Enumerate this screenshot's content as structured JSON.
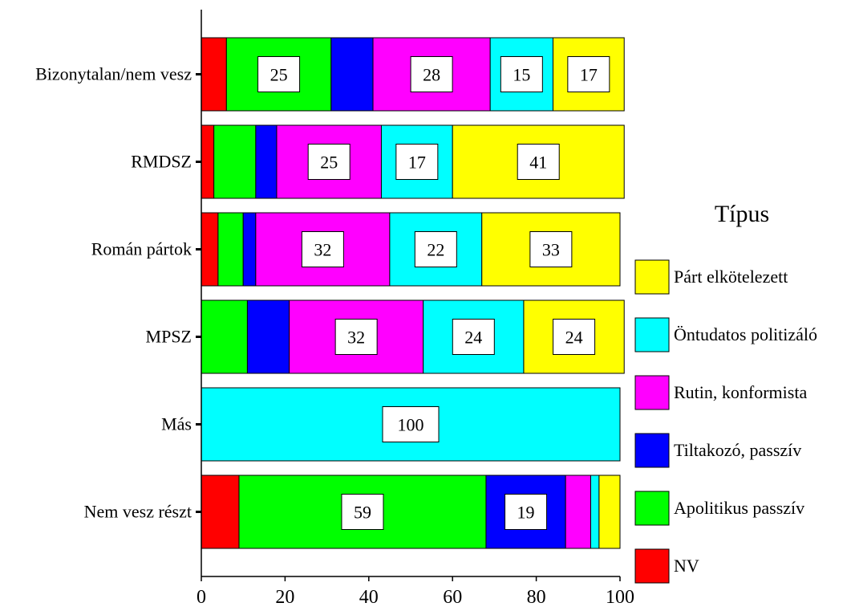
{
  "chart_data": {
    "type": "bar",
    "orientation": "horizontal",
    "stacked": true,
    "categories": [
      "Bizonytalan/nem vesz",
      "RMDSZ",
      "Román pártok",
      "MPSZ",
      "Más",
      "Nem vesz részt"
    ],
    "series": [
      {
        "name": "NV",
        "color": "#FF0000",
        "values": [
          6,
          3,
          4,
          0,
          0,
          9
        ]
      },
      {
        "name": "Apolitikus passzív",
        "color": "#00FF00",
        "values": [
          25,
          10,
          6,
          11,
          0,
          59
        ]
      },
      {
        "name": "Tiltakozó, passzív",
        "color": "#0000FF",
        "values": [
          10,
          5,
          3,
          10,
          0,
          19
        ]
      },
      {
        "name": "Rutin, konformista",
        "color": "#FF00FF",
        "values": [
          28,
          25,
          32,
          32,
          0,
          6
        ]
      },
      {
        "name": "Öntudatos politizáló",
        "color": "#00FFFF",
        "values": [
          15,
          17,
          22,
          24,
          100,
          2
        ]
      },
      {
        "name": "Párt elkötelezett",
        "color": "#FFFF00",
        "values": [
          17,
          41,
          33,
          24,
          0,
          5
        ]
      }
    ],
    "labeled_segments": [
      {
        "category": "Bizonytalan/nem vesz",
        "series": "Apolitikus passzív",
        "label": "25"
      },
      {
        "category": "Bizonytalan/nem vesz",
        "series": "Rutin, konformista",
        "label": "28"
      },
      {
        "category": "Bizonytalan/nem vesz",
        "series": "Öntudatos politizáló",
        "label": "15"
      },
      {
        "category": "Bizonytalan/nem vesz",
        "series": "Párt elkötelezett",
        "label": "17"
      },
      {
        "category": "RMDSZ",
        "series": "Rutin, konformista",
        "label": "25"
      },
      {
        "category": "RMDSZ",
        "series": "Öntudatos politizáló",
        "label": "17"
      },
      {
        "category": "RMDSZ",
        "series": "Párt elkötelezett",
        "label": "41"
      },
      {
        "category": "Román pártok",
        "series": "Rutin, konformista",
        "label": "32"
      },
      {
        "category": "Román pártok",
        "series": "Öntudatos politizáló",
        "label": "22"
      },
      {
        "category": "Román pártok",
        "series": "Párt elkötelezett",
        "label": "33"
      },
      {
        "category": "MPSZ",
        "series": "Rutin, konformista",
        "label": "32"
      },
      {
        "category": "MPSZ",
        "series": "Öntudatos politizáló",
        "label": "24"
      },
      {
        "category": "MPSZ",
        "series": "Párt elkötelezett",
        "label": "24"
      },
      {
        "category": "Más",
        "series": "Öntudatos politizáló",
        "label": "100"
      },
      {
        "category": "Nem vesz részt",
        "series": "Apolitikus passzív",
        "label": "59"
      },
      {
        "category": "Nem vesz részt",
        "series": "Tiltakozó, passzív",
        "label": "19"
      }
    ],
    "xlim": [
      0,
      100
    ],
    "x_ticks": [
      0,
      20,
      40,
      60,
      80,
      100
    ],
    "title": "",
    "xlabel": "",
    "ylabel": "",
    "legend": {
      "title": "Típus",
      "placement": "right",
      "order": [
        "Párt elkötelezett",
        "Öntudatos politizáló",
        "Rutin, konformista",
        "Tiltakozó, passzív",
        "Apolitikus passzív",
        "NV"
      ]
    },
    "grid": false
  }
}
